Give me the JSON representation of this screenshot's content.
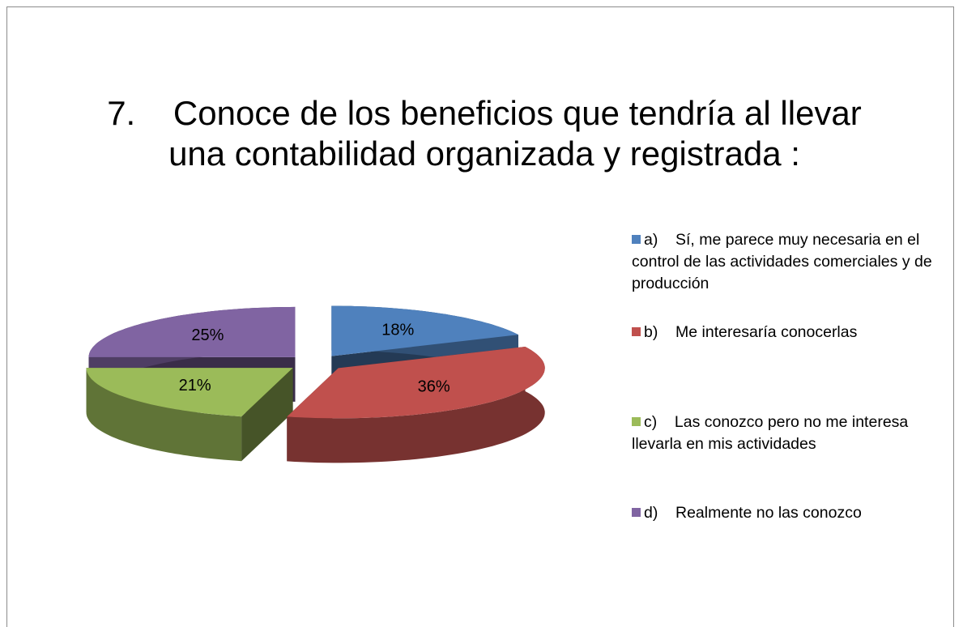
{
  "chart_data": {
    "type": "pie",
    "title": "7.    Conoce de los beneficios que tendría al llevar  una contabilidad organizada y registrada :",
    "categories": [
      "a)    Sí, me parece muy necesaria en el control de las actividades comerciales y de producción",
      "b)    Me interesaría conocerlas",
      "c)    Las conozco pero no me interesa llevarla en mis actividades",
      "d)    Realmente no las conozco"
    ],
    "values": [
      18,
      36,
      21,
      25
    ],
    "value_labels": [
      "18%",
      "36%",
      "21%",
      "25%"
    ],
    "colors": [
      "#4f81bd",
      "#c0504d",
      "#9bbb59",
      "#8064a2"
    ],
    "legend": "right"
  }
}
